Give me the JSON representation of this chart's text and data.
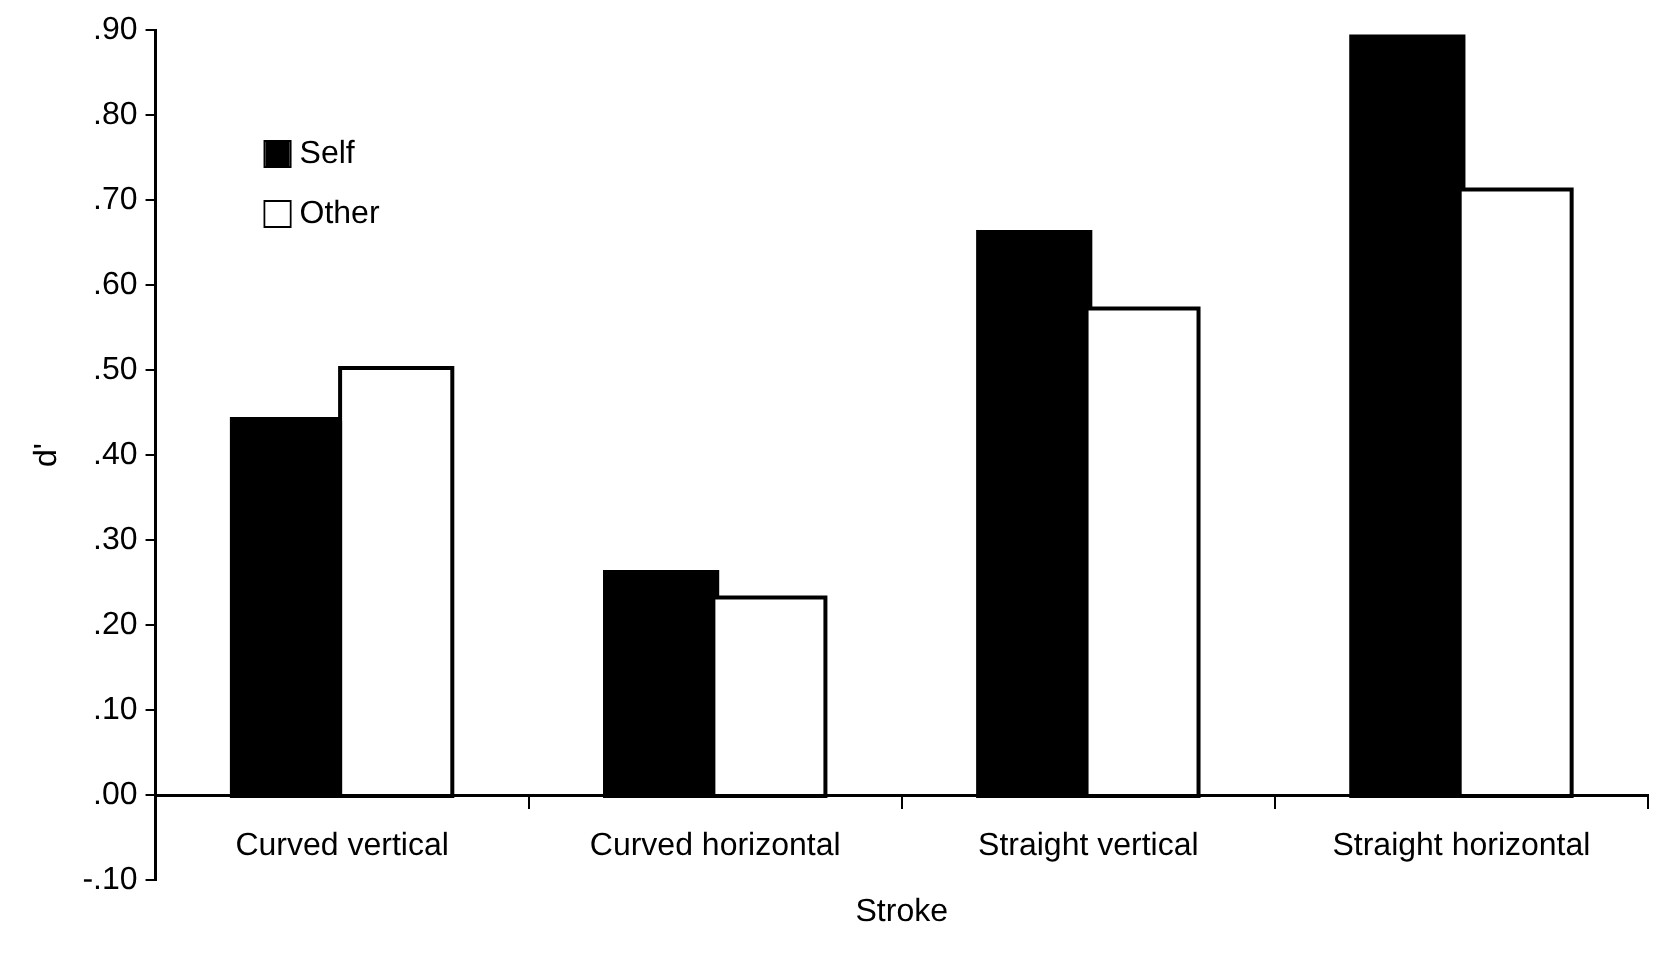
{
  "chart_data": {
    "type": "bar",
    "xlabel": "Stroke",
    "ylabel": "d'",
    "categories": [
      "Curved vertical",
      "Curved horizontal",
      "Straight vertical",
      "Straight horizontal"
    ],
    "series": [
      {
        "name": "Self",
        "color": "#000000",
        "values": [
          0.44,
          0.26,
          0.66,
          0.89
        ]
      },
      {
        "name": "Other",
        "color": "#ffffff",
        "values": [
          0.5,
          0.23,
          0.57,
          0.71
        ]
      }
    ],
    "ylim": [
      -0.1,
      0.9
    ],
    "yticks": [
      {
        "value": -0.1,
        "label": "-.10"
      },
      {
        "value": 0,
        "label": ".00"
      },
      {
        "value": 0.1,
        "label": ".10"
      },
      {
        "value": 0.2,
        "label": ".20"
      },
      {
        "value": 0.3,
        "label": ".30"
      },
      {
        "value": 0.4,
        "label": ".40"
      },
      {
        "value": 0.5,
        "label": ".50"
      },
      {
        "value": 0.6,
        "label": ".60"
      },
      {
        "value": 0.7,
        "label": ".70"
      },
      {
        "value": 0.8,
        "label": ".80"
      },
      {
        "value": 0.9,
        "label": ".90"
      }
    ],
    "grid": false,
    "legend": "top left"
  }
}
